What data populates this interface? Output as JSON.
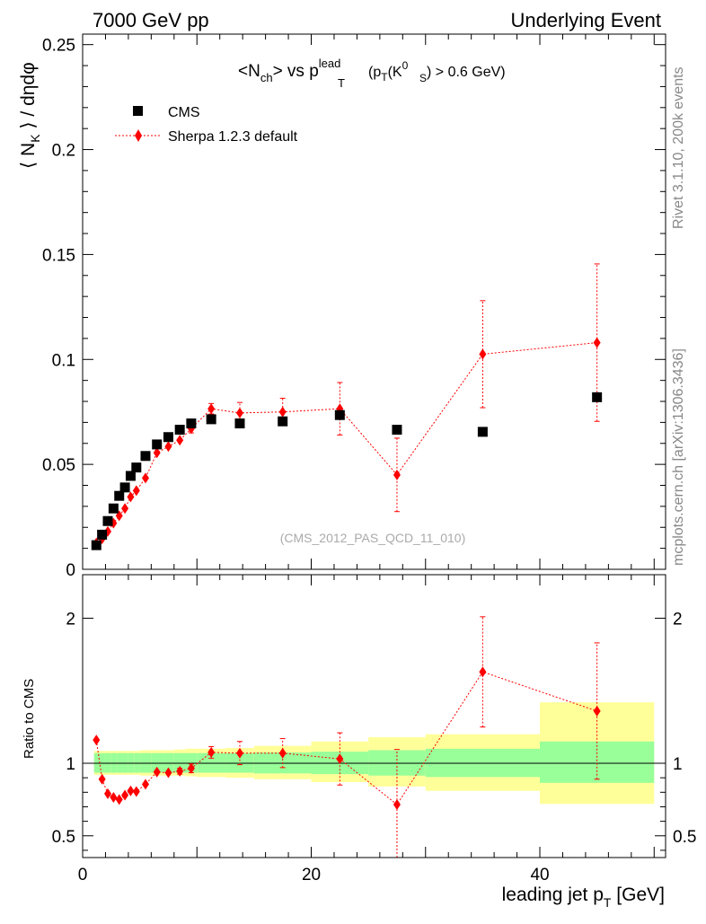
{
  "header": {
    "left": "7000 GeV pp",
    "right": "Underlying Event"
  },
  "side_labels": {
    "rivet": "Rivet 3.1.10,  200k events",
    "mcplots": "mcplots.cern.ch [arXiv:1306.3436]"
  },
  "colors": {
    "cms": "#000000",
    "mc": "#ff0000",
    "band_inner": "#99ff99",
    "band_outer": "#ffff99"
  },
  "chart_data": [
    {
      "type": "scatter",
      "title_parts": {
        "pre": "<N",
        "sub1": "ch",
        "mid": "> vs p",
        "sup2": "lead",
        "sub2": "T",
        "cut": "(p",
        "cut_sub": "T",
        "cut2": "(K",
        "cut_sup": "0",
        "cut_sub2": "S",
        "cut3": ") > 0.6 GeV)"
      },
      "ylabel_parts": {
        "pre": "⟨ N",
        "sub": "K",
        "post": " ⟩ / dηdφ"
      },
      "watermark": "(CMS_2012_PAS_QCD_11_010)",
      "xlim": [
        0,
        51
      ],
      "ylim": [
        0,
        0.255
      ],
      "yticks": [
        0,
        0.05,
        0.1,
        0.15,
        0.2,
        0.25
      ],
      "ytick_labels": [
        "0",
        "0.05",
        "0.1",
        "0.15",
        "0.2",
        "0.25"
      ],
      "legend": {
        "position": "top-left",
        "entries": [
          "CMS",
          "Sherpa 1.2.3 default"
        ]
      },
      "series": [
        {
          "name": "CMS",
          "marker": "square",
          "x": [
            1.2,
            1.7,
            2.2,
            2.7,
            3.2,
            3.7,
            4.2,
            4.7,
            5.5,
            6.5,
            7.5,
            8.5,
            9.5,
            11.25,
            13.75,
            17.5,
            22.5,
            27.5,
            35,
            45
          ],
          "y": [
            0.0115,
            0.0165,
            0.023,
            0.029,
            0.035,
            0.039,
            0.0445,
            0.0485,
            0.054,
            0.0595,
            0.063,
            0.0665,
            0.0695,
            0.0715,
            0.0695,
            0.0705,
            0.0735,
            0.0665,
            0.0655,
            0.082
          ]
        },
        {
          "name": "Sherpa 1.2.3 default",
          "marker": "diamond",
          "x": [
            1.2,
            1.7,
            2.2,
            2.7,
            3.2,
            3.7,
            4.2,
            4.7,
            5.5,
            6.5,
            7.5,
            8.5,
            9.5,
            11.25,
            13.75,
            17.5,
            22.5,
            27.5,
            35,
            45
          ],
          "y": [
            0.0125,
            0.0145,
            0.018,
            0.022,
            0.0255,
            0.029,
            0.0345,
            0.0375,
            0.0435,
            0.0555,
            0.0585,
            0.0615,
            0.067,
            0.0765,
            0.0745,
            0.075,
            0.0765,
            0.045,
            0.1025,
            0.108
          ],
          "err": [
            0.0005,
            0.0005,
            0.0005,
            0.0005,
            0.0005,
            0.0005,
            0.0005,
            0.0005,
            0.0005,
            0.001,
            0.001,
            0.001,
            0.002,
            0.0025,
            0.005,
            0.0065,
            0.0125,
            0.0175,
            0.0255,
            0.0375
          ]
        }
      ]
    },
    {
      "type": "scatter",
      "ylabel": "Ratio to CMS",
      "xlabel_parts": {
        "pre": "leading jet p",
        "sub": "T",
        "post": " [GeV]"
      },
      "xlim": [
        0,
        51
      ],
      "ylim": [
        0.35,
        2.3
      ],
      "xticks": [
        0,
        20,
        40
      ],
      "xtick_labels": [
        "0",
        "20",
        "40"
      ],
      "yticks": [
        0.5,
        1,
        2
      ],
      "ytick_labels": [
        "0.5",
        "1",
        "2"
      ],
      "reference_line": 1,
      "band_edges": [
        1,
        1.5,
        2,
        2.5,
        3,
        3.5,
        4,
        4.5,
        5,
        6,
        7,
        8,
        9,
        10,
        12.5,
        15,
        20,
        25,
        30,
        40,
        50
      ],
      "band_inner": [
        [
          0.935,
          1.07
        ],
        [
          0.935,
          1.07
        ],
        [
          0.935,
          1.07
        ],
        [
          0.935,
          1.07
        ],
        [
          0.935,
          1.07
        ],
        [
          0.935,
          1.07
        ],
        [
          0.935,
          1.07
        ],
        [
          0.935,
          1.07
        ],
        [
          0.935,
          1.07
        ],
        [
          0.935,
          1.07
        ],
        [
          0.935,
          1.07
        ],
        [
          0.935,
          1.07
        ],
        [
          0.935,
          1.07
        ],
        [
          0.935,
          1.07
        ],
        [
          0.935,
          1.07
        ],
        [
          0.93,
          1.075
        ],
        [
          0.925,
          1.08
        ],
        [
          0.915,
          1.09
        ],
        [
          0.905,
          1.1
        ],
        [
          0.865,
          1.15
        ]
      ],
      "band_outer": [
        [
          0.92,
          1.085
        ],
        [
          0.92,
          1.085
        ],
        [
          0.92,
          1.085
        ],
        [
          0.92,
          1.085
        ],
        [
          0.92,
          1.085
        ],
        [
          0.92,
          1.085
        ],
        [
          0.92,
          1.085
        ],
        [
          0.92,
          1.085
        ],
        [
          0.915,
          1.09
        ],
        [
          0.915,
          1.09
        ],
        [
          0.915,
          1.09
        ],
        [
          0.915,
          1.095
        ],
        [
          0.91,
          1.1
        ],
        [
          0.905,
          1.1
        ],
        [
          0.9,
          1.105
        ],
        [
          0.89,
          1.12
        ],
        [
          0.87,
          1.15
        ],
        [
          0.84,
          1.18
        ],
        [
          0.81,
          1.2
        ],
        [
          0.72,
          1.42
        ]
      ],
      "series": [
        {
          "name": "Sherpa 1.2.3 default",
          "x": [
            1.2,
            1.7,
            2.2,
            2.7,
            3.2,
            3.7,
            4.2,
            4.7,
            5.5,
            6.5,
            7.5,
            8.5,
            9.5,
            11.25,
            13.75,
            17.5,
            22.5,
            27.5,
            35,
            45
          ],
          "y": [
            1.16,
            0.89,
            0.79,
            0.765,
            0.75,
            0.78,
            0.81,
            0.805,
            0.855,
            0.94,
            0.935,
            0.945,
            0.965,
            1.075,
            1.07,
            1.07,
            1.03,
            0.715,
            1.63,
            1.36
          ],
          "err": [
            0.01,
            0.01,
            0.01,
            0.01,
            0.01,
            0.01,
            0.01,
            0.01,
            0.01,
            0.01,
            0.01,
            0.02,
            0.03,
            0.04,
            0.08,
            0.1,
            0.18,
            0.38,
            0.38,
            0.47
          ]
        }
      ]
    }
  ]
}
